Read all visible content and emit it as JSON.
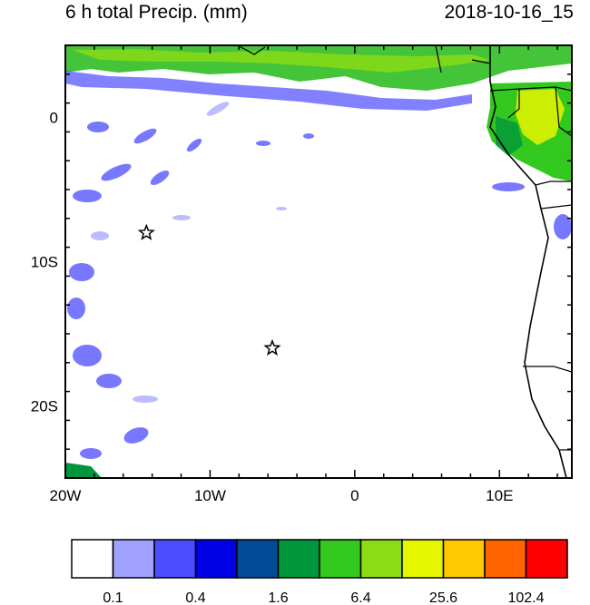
{
  "title": {
    "left": "6 h total Precip. (mm)",
    "right": "2018-10-16_15"
  },
  "map": {
    "lon_range": [
      -20,
      15
    ],
    "lat_range": [
      -25,
      5
    ],
    "x_ticks": [
      {
        "lon": -20,
        "label": "20W"
      },
      {
        "lon": -10,
        "label": "10W"
      },
      {
        "lon": 0,
        "label": "0"
      },
      {
        "lon": 10,
        "label": "10E"
      }
    ],
    "y_ticks": [
      {
        "lat": 0,
        "label": "0"
      },
      {
        "lat": -10,
        "label": "10S"
      },
      {
        "lat": -20,
        "label": "20S"
      }
    ],
    "markers": [
      {
        "name": "star-marker",
        "lon": -14.4,
        "lat": -8.0
      },
      {
        "name": "star-marker",
        "lon": -5.7,
        "lat": -16.0
      }
    ]
  },
  "colorbar": {
    "colors": [
      "#ffffff",
      "#a0a0ff",
      "#4b4bff",
      "#0000e6",
      "#004a96",
      "#00963c",
      "#32c81e",
      "#8cdc14",
      "#e6f500",
      "#ffc800",
      "#ff6400",
      "#ff0000"
    ],
    "labels": [
      "0.1",
      "0.4",
      "1.6",
      "6.4",
      "25.6",
      "102.4"
    ]
  }
}
